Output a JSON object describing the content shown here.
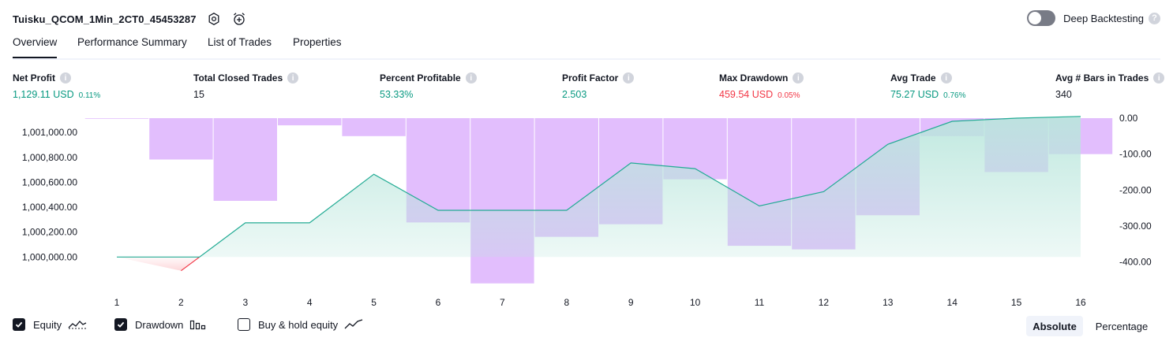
{
  "header": {
    "title": "Tuisku_QCOM_1Min_2CT0_45453287",
    "deep_backtesting_label": "Deep Backtesting"
  },
  "tabs": [
    {
      "label": "Overview",
      "active": true
    },
    {
      "label": "Performance Summary",
      "active": false
    },
    {
      "label": "List of Trades",
      "active": false
    },
    {
      "label": "Properties",
      "active": false
    }
  ],
  "metrics": {
    "net_profit": {
      "label": "Net Profit",
      "value": "1,129.11 USD",
      "pct": "0.11%"
    },
    "total_closed_trades": {
      "label": "Total Closed Trades",
      "value": "15"
    },
    "percent_profitable": {
      "label": "Percent Profitable",
      "value": "53.33%"
    },
    "profit_factor": {
      "label": "Profit Factor",
      "value": "2.503"
    },
    "max_drawdown": {
      "label": "Max Drawdown",
      "value": "459.54 USD",
      "pct": "0.05%"
    },
    "avg_trade": {
      "label": "Avg Trade",
      "value": "75.27 USD",
      "pct": "0.76%"
    },
    "avg_bars": {
      "label": "Avg # Bars in Trades",
      "value": "340"
    }
  },
  "chart_data": {
    "type": "area",
    "x": [
      1,
      2,
      3,
      4,
      5,
      6,
      7,
      8,
      9,
      10,
      11,
      12,
      13,
      14,
      15,
      16
    ],
    "series": [
      {
        "name": "Equity",
        "axis": "left",
        "values": [
          1000000,
          999890,
          1000275,
          1000275,
          1000665,
          1000375,
          1000375,
          1000375,
          1000755,
          1000710,
          1000410,
          1000525,
          1000905,
          1001090,
          1001115,
          1001129
        ]
      },
      {
        "name": "Drawdown",
        "axis": "right",
        "values": [
          0,
          -115,
          -230,
          -20,
          -50,
          -290,
          -459.54,
          -330,
          -295,
          -170,
          -355,
          -365,
          -270,
          -50,
          -150,
          -100
        ]
      }
    ],
    "left_axis": {
      "ylim": [
        999920,
        1001115
      ],
      "ticks": [
        "1,000,000.00",
        "1,000,200.00",
        "1,000,400.00",
        "1,000,600.00",
        "1,000,800.00",
        "1,001,000.00"
      ]
    },
    "right_axis": {
      "ylim": [
        -460,
        0
      ],
      "ticks": [
        "0.00",
        "-100.00",
        "-200.00",
        "-300.00",
        "-400.00"
      ]
    },
    "x_ticks": [
      "1",
      "2",
      "3",
      "4",
      "5",
      "6",
      "7",
      "8",
      "9",
      "10",
      "11",
      "12",
      "13",
      "14",
      "15",
      "16"
    ],
    "colors": {
      "equity_line": "#22ab94",
      "equity_fill": "#b9e6dc",
      "loss_line": "#f23645",
      "drawdown_bar": "#ce93fb"
    }
  },
  "legend": {
    "equity": "Equity",
    "drawdown": "Drawdown",
    "buy_hold": "Buy & hold equity"
  },
  "view_toggle": {
    "absolute": "Absolute",
    "percentage": "Percentage"
  }
}
